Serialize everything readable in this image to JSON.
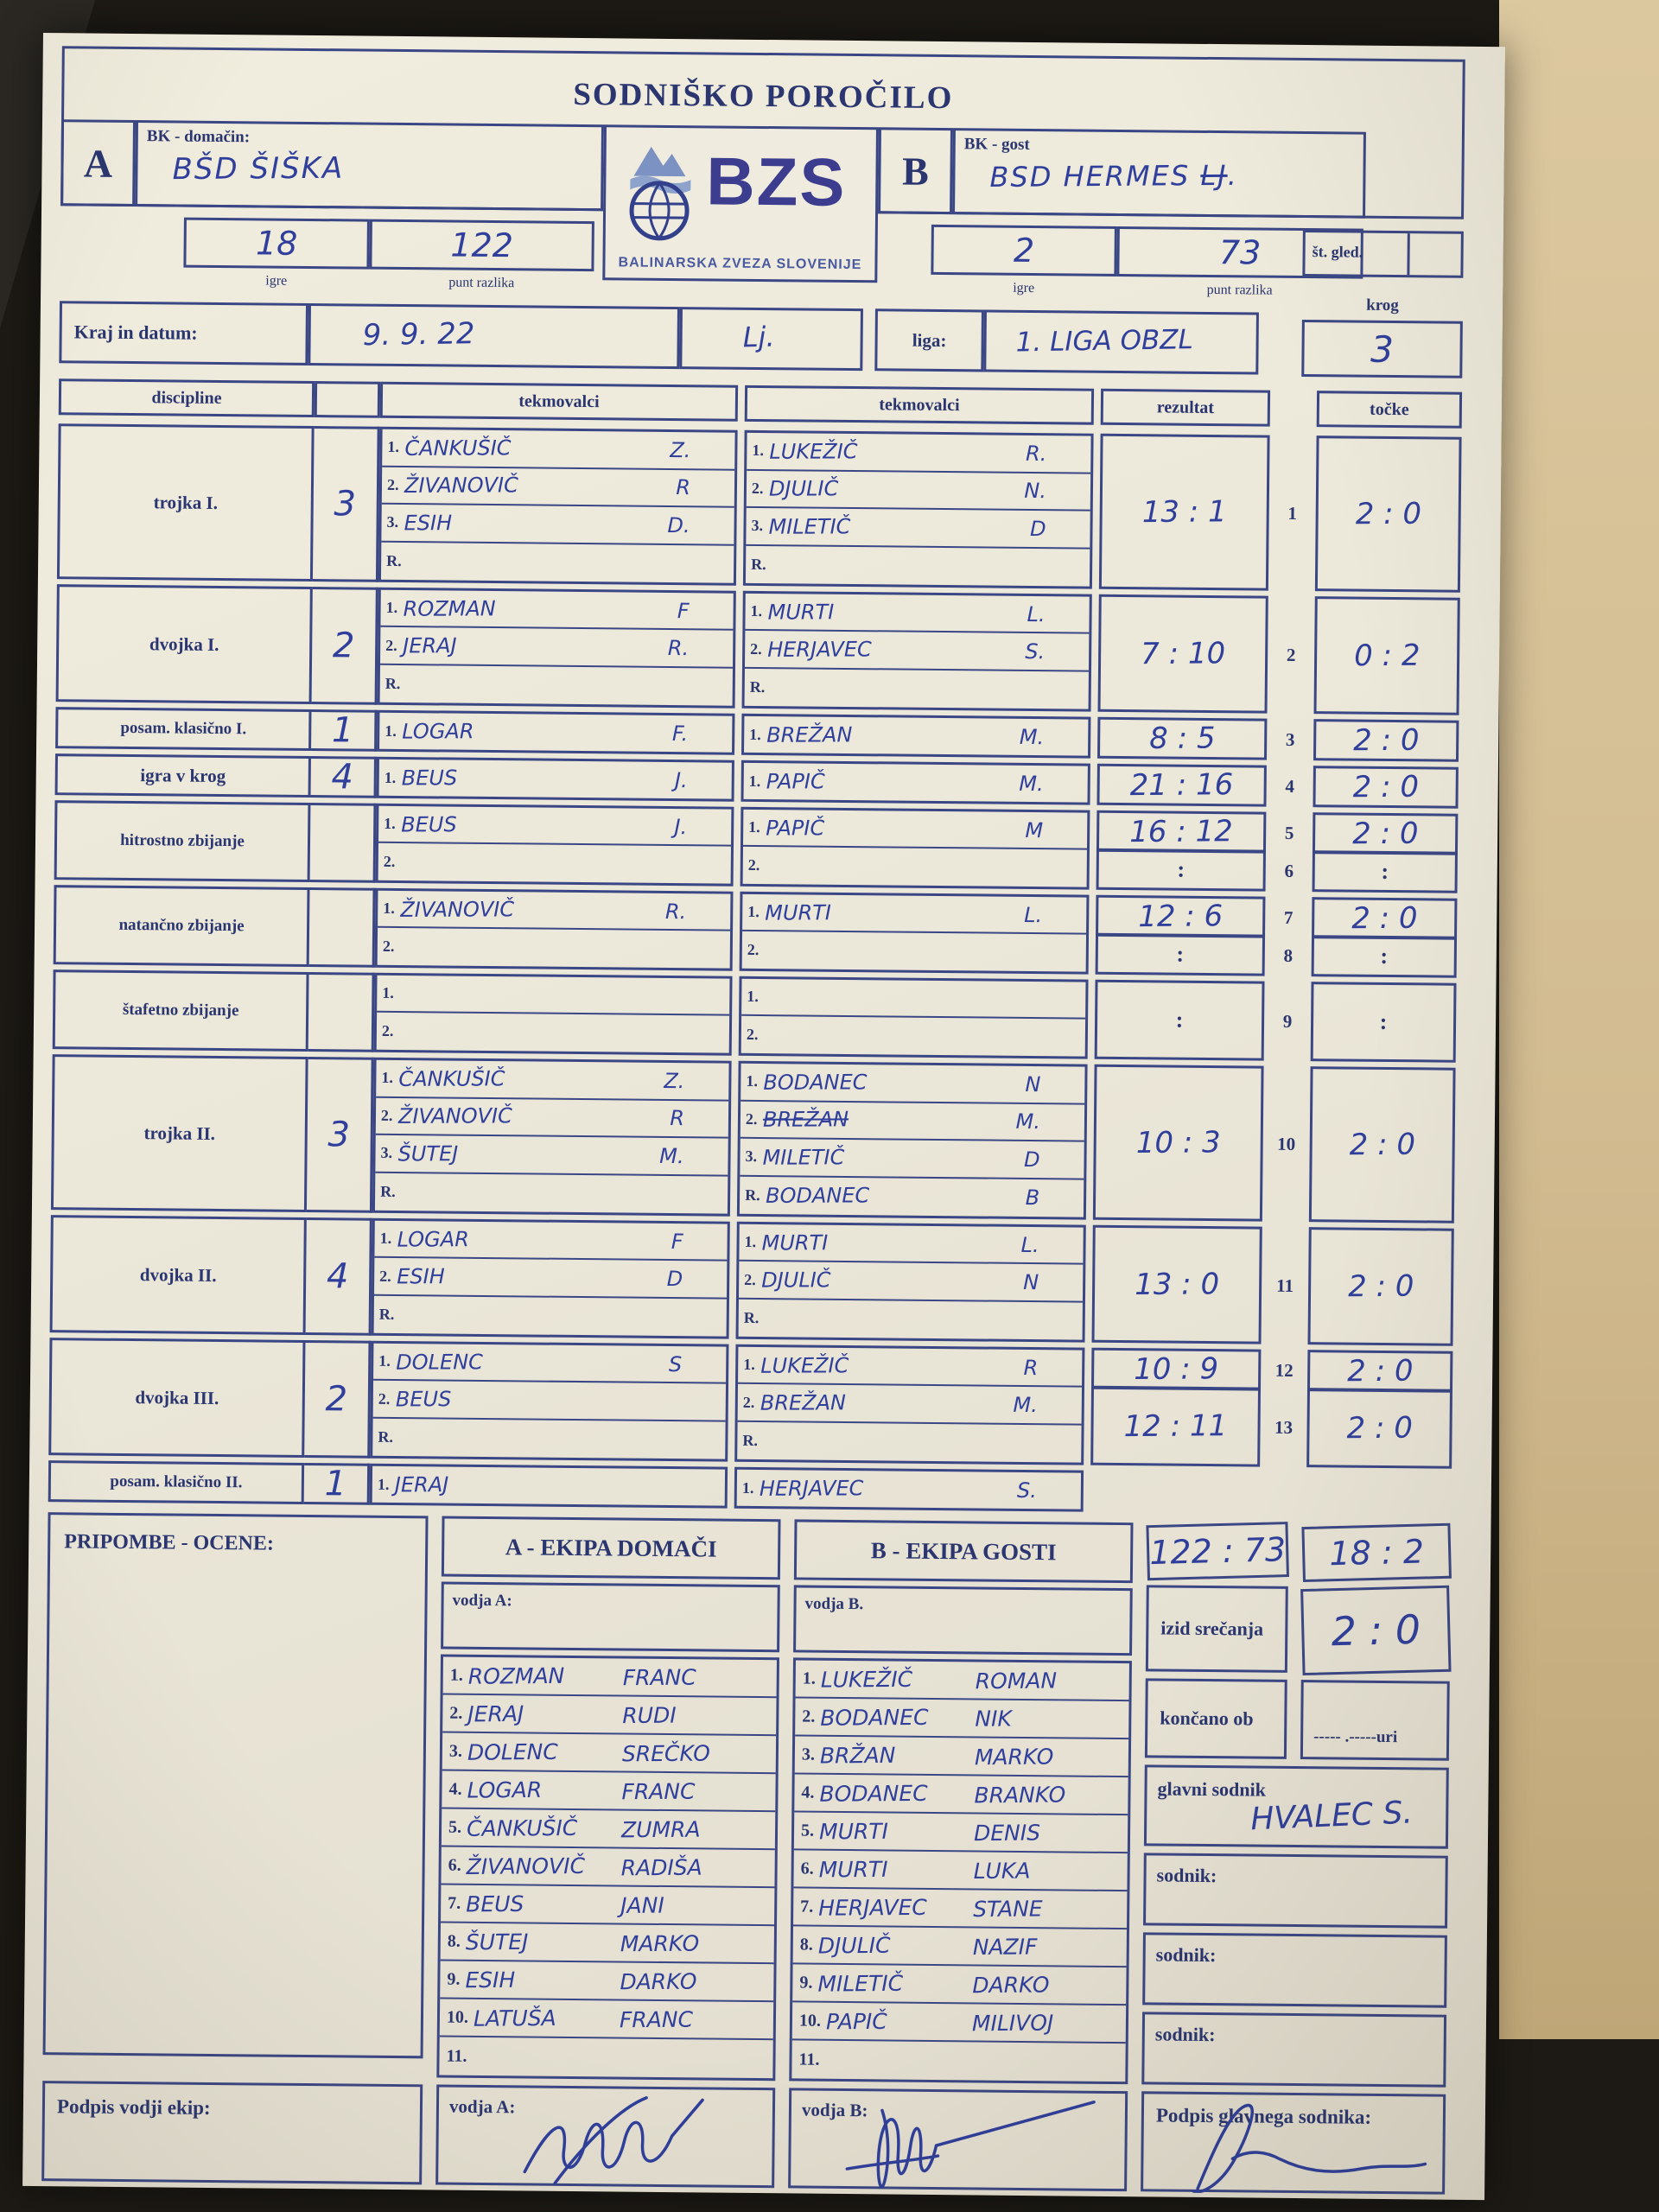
{
  "title": "SODNIŠKO POROČILO",
  "logo": {
    "abbr": "BZS",
    "org": "BALINARSKA ZVEZA SLOVENIJE"
  },
  "colors": {
    "ink": "#2b3670",
    "border": "#3b4784",
    "pen": "#2f3f9b",
    "paper": "#ece8db",
    "logo_blue": "#3d3d8f"
  },
  "team_a": {
    "letter": "A",
    "label": "BK - domačin:",
    "name": "BŠD ŠIŠKA",
    "igre": "18",
    "igre_label": "igre",
    "punt": "122",
    "punt_label": "punt razlika"
  },
  "team_b": {
    "letter": "B",
    "label": "BK - gost",
    "name": "BSD HERMES",
    "name_struck": "LJ",
    "name_suffix": ".",
    "igre": "2",
    "igre_label": "igre",
    "punt": "73",
    "punt_label": "punt razlika"
  },
  "st_gled": {
    "label": "št. gled.",
    "value": ""
  },
  "krog": {
    "label": "krog",
    "value": "3"
  },
  "kraj": {
    "label": "Kraj in datum:",
    "date": "9. 9. 22",
    "place": "Lj."
  },
  "liga": {
    "label": "liga:",
    "value": "1. LIGA OBZL"
  },
  "table_headers": {
    "discipline": "discipline",
    "tekmovalci_a": "tekmovalci",
    "tekmovalci_b": "tekmovalci",
    "rezultat": "rezultat",
    "tocke": "točke"
  },
  "matches": [
    {
      "discipline": "trojka I.",
      "count": "3",
      "a": [
        [
          "1.",
          "ČANKUŠIČ",
          "Z."
        ],
        [
          "2.",
          "ŽIVANOVIČ",
          "R"
        ],
        [
          "3.",
          "ESIH",
          "D."
        ],
        [
          "R.",
          "",
          ""
        ]
      ],
      "b": [
        [
          "1.",
          "LUKEŽIČ",
          "R."
        ],
        [
          "2.",
          "DJULIČ",
          "N."
        ],
        [
          "3.",
          "MILETIČ",
          "D"
        ],
        [
          "R.",
          "",
          ""
        ]
      ],
      "results": [
        {
          "score": "13 : 1",
          "no": "1",
          "points": "2 : 0",
          "span": 4
        }
      ]
    },
    {
      "discipline": "dvojka I.",
      "count": "2",
      "a": [
        [
          "1.",
          "ROZMAN",
          "F"
        ],
        [
          "2.",
          "JERAJ",
          "R."
        ],
        [
          "R.",
          "",
          ""
        ]
      ],
      "b": [
        [
          "1.",
          "MURTI",
          "L."
        ],
        [
          "2.",
          "HERJAVEC",
          "S."
        ],
        [
          "R.",
          "",
          ""
        ]
      ],
      "results": [
        {
          "score": "7 : 10",
          "no": "2",
          "points": "0 : 2",
          "span": 3
        }
      ]
    },
    {
      "discipline": "posam. klasično I.",
      "count": "1",
      "a": [
        [
          "1.",
          "LOGAR",
          "F."
        ]
      ],
      "b": [
        [
          "1.",
          "BREŽAN",
          "M."
        ]
      ],
      "results": [
        {
          "score": "8 : 5",
          "no": "3",
          "points": "2 : 0",
          "span": 1
        }
      ]
    },
    {
      "discipline": "igra v krog",
      "count": "4",
      "a": [
        [
          "1.",
          "BEUS",
          "J."
        ]
      ],
      "b": [
        [
          "1.",
          "PAPIČ",
          "M."
        ]
      ],
      "results": [
        {
          "score": "21 : 16",
          "no": "4",
          "points": "2 : 0",
          "span": 1
        }
      ]
    },
    {
      "discipline": "hitrostno zbijanje",
      "count": "",
      "a": [
        [
          "1.",
          "BEUS",
          "J."
        ],
        [
          "2.",
          "",
          ""
        ]
      ],
      "b": [
        [
          "1.",
          "PAPIČ",
          "M"
        ],
        [
          "2.",
          "",
          ""
        ]
      ],
      "results": [
        {
          "score": "16 : 12",
          "no": "5",
          "points": "2 : 0",
          "span": 1
        },
        {
          "score": "",
          "no": "6",
          "points": "",
          "span": 1,
          "empty": true
        }
      ]
    },
    {
      "discipline": "natančno zbijanje",
      "count": "",
      "a": [
        [
          "1.",
          "ŽIVANOVIČ",
          "R."
        ],
        [
          "2.",
          "",
          ""
        ]
      ],
      "b": [
        [
          "1.",
          "MURTI",
          "L."
        ],
        [
          "2.",
          "",
          ""
        ]
      ],
      "results": [
        {
          "score": "12 : 6",
          "no": "7",
          "points": "2 : 0",
          "span": 1
        },
        {
          "score": "",
          "no": "8",
          "points": "",
          "span": 1,
          "empty": true
        }
      ]
    },
    {
      "discipline": "štafetno zbijanje",
      "count": "",
      "a": [
        [
          "1.",
          "",
          ""
        ],
        [
          "2.",
          "",
          ""
        ]
      ],
      "b": [
        [
          "1.",
          "",
          ""
        ],
        [
          "2.",
          "",
          ""
        ]
      ],
      "results": [
        {
          "score": "",
          "no": "9",
          "points": "",
          "span": 2,
          "empty": true
        }
      ]
    },
    {
      "discipline": "trojka II.",
      "count": "3",
      "a": [
        [
          "1.",
          "ČANKUŠIČ",
          "Z."
        ],
        [
          "2.",
          "ŽIVANOVIČ",
          "R"
        ],
        [
          "3.",
          "ŠUTEJ",
          "M."
        ],
        [
          "R.",
          "",
          ""
        ]
      ],
      "b": [
        [
          "1.",
          "BODANEC",
          "N"
        ],
        [
          "2.",
          "BREŽAN",
          "M.",
          "strike"
        ],
        [
          "3.",
          "MILETIČ",
          "D"
        ],
        [
          "R.",
          "BODANEC",
          "B"
        ]
      ],
      "results": [
        {
          "score": "10 : 3",
          "no": "10",
          "points": "2 : 0",
          "span": 4
        }
      ]
    },
    {
      "discipline": "dvojka II.",
      "count": "4",
      "a": [
        [
          "1.",
          "LOGAR",
          "F"
        ],
        [
          "2.",
          "ESIH",
          "D"
        ],
        [
          "R.",
          "",
          ""
        ]
      ],
      "b": [
        [
          "1.",
          "MURTI",
          "L."
        ],
        [
          "2.",
          "DJULIČ",
          "N"
        ],
        [
          "R.",
          "",
          ""
        ]
      ],
      "results": [
        {
          "score": "13 : 0",
          "no": "11",
          "points": "2 : 0",
          "span": 3
        }
      ]
    },
    {
      "discipline": "dvojka III.",
      "count": "2",
      "a": [
        [
          "1.",
          "DOLENC",
          "S"
        ],
        [
          "2.",
          "BEUS",
          ""
        ],
        [
          "R.",
          "",
          ""
        ]
      ],
      "b": [
        [
          "1.",
          "LUKEŽIČ",
          "R"
        ],
        [
          "2.",
          "BREŽAN",
          "M."
        ],
        [
          "R.",
          "",
          ""
        ]
      ],
      "results": [
        {
          "score": "10 : 9",
          "no": "12",
          "points": "2 : 0",
          "span": 1
        },
        {
          "score": "12 : 11",
          "no": "13",
          "points": "2 : 0",
          "span": 2
        }
      ]
    },
    {
      "discipline": "posam. klasično II.",
      "count": "1",
      "a": [
        [
          "1.",
          "JERAJ",
          ""
        ]
      ],
      "b": [
        [
          "1.",
          "HERJAVEC",
          "S."
        ]
      ],
      "results": []
    }
  ],
  "bottom": {
    "pripombe_label": "PRIPOMBE - OCENE:",
    "team_a_header": "A - EKIPA DOMAČI",
    "team_b_header": "B - EKIPA GOSTI",
    "vodja_a_label": "vodja A:",
    "vodja_b_label": "vodja B.",
    "roster_a": [
      [
        "1.",
        "ROZMAN",
        "FRANC"
      ],
      [
        "2.",
        "JERAJ",
        "RUDI"
      ],
      [
        "3.",
        "DOLENC",
        "SREČKO"
      ],
      [
        "4.",
        "LOGAR",
        "FRANC"
      ],
      [
        "5.",
        "ČANKUŠIČ",
        "ZUMRA"
      ],
      [
        "6.",
        "ŽIVANOVIČ",
        "RADIŠA"
      ],
      [
        "7.",
        "BEUS",
        "JANI"
      ],
      [
        "8.",
        "ŠUTEJ",
        "MARKO"
      ],
      [
        "9.",
        "ESIH",
        "DARKO"
      ],
      [
        "10.",
        "LATUŠA",
        "FRANC"
      ],
      [
        "11.",
        "",
        ""
      ]
    ],
    "roster_b": [
      [
        "1.",
        "LUKEŽIČ",
        "ROMAN"
      ],
      [
        "2.",
        "BODANEC",
        "NIK"
      ],
      [
        "3.",
        "BRŽAN",
        "MARKO"
      ],
      [
        "4.",
        "BODANEC",
        "BRANKO"
      ],
      [
        "5.",
        "MURTI",
        "DENIS"
      ],
      [
        "6.",
        "MURTI",
        "LUKA"
      ],
      [
        "7.",
        "HERJAVEC",
        "STANE"
      ],
      [
        "8.",
        "DJULIČ",
        "NAZIF"
      ],
      [
        "9.",
        "MILETIČ",
        "DARKO"
      ],
      [
        "10.",
        "PAPIČ",
        "MILIVOJ"
      ],
      [
        "11.",
        "",
        ""
      ]
    ],
    "summary": {
      "punti_total": "122 : 73",
      "igre_total": "18 : 2",
      "izid_label": "izid srečanja",
      "izid_value": "2 : 0",
      "koncano_label": "končano ob",
      "koncano_value": "----- .-----uri",
      "glavni_label": "glavni sodnik",
      "glavni_value": "HVALEC S.",
      "sodnik_label_1": "sodnik:",
      "sodnik_label_2": "sodnik:",
      "sodnik_label_3": "sodnik:",
      "podpis_glavnega_label": "Podpis glavnega sodnika:"
    },
    "podpis_vodji_label": "Podpis vodji ekip:",
    "vodja_a_sign_label": "vodja A:",
    "vodja_b_sign_label": "vodja B:"
  }
}
